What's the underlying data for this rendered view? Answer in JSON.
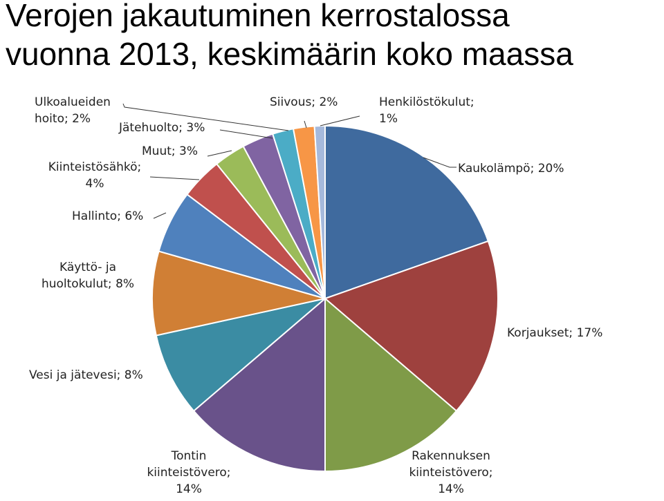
{
  "title_lines": [
    "Verojen jakautuminen kerrostalossa",
    "vuonna 2013, keskimäärin koko maassa"
  ],
  "chart_data": {
    "type": "pie",
    "title": "Verojen jakautuminen kerrostalossa vuonna 2013, keskimäärin koko maassa",
    "slices": [
      {
        "name": "Kaukolämpö",
        "value": 20,
        "label_lines": [
          "Kaukolämpö; 20%"
        ],
        "color": "#3f6a9e"
      },
      {
        "name": "Korjaukset",
        "value": 17,
        "label_lines": [
          "Korjaukset; 17%"
        ],
        "color": "#9e413e"
      },
      {
        "name": "Rakennuksen kiinteistövero",
        "value": 14,
        "label_lines": [
          "Rakennuksen",
          "kiinteistövero;",
          "14%"
        ],
        "color": "#7f9b48"
      },
      {
        "name": "Tontin kiinteistövero",
        "value": 14,
        "label_lines": [
          "Tontin",
          "kiinteistövero;",
          "14%"
        ],
        "color": "#69528a"
      },
      {
        "name": "Vesi ja jätevesi",
        "value": 8,
        "label_lines": [
          "Vesi ja jätevesi; 8%"
        ],
        "color": "#3b8ca3"
      },
      {
        "name": "Käyttö- ja huoltokulut",
        "value": 8,
        "label_lines": [
          "Käyttö- ja",
          "huoltokulut; 8%"
        ],
        "color": "#d07f35"
      },
      {
        "name": "Hallinto",
        "value": 6,
        "label_lines": [
          "Hallinto; 6%"
        ],
        "color": "#4f81bd"
      },
      {
        "name": "Kiinteistösähkö",
        "value": 4,
        "label_lines": [
          "Kiinteistösähkö;",
          "4%"
        ],
        "color": "#c0504d"
      },
      {
        "name": "Muut",
        "value": 3,
        "label_lines": [
          "Muut; 3%"
        ],
        "color": "#9bbb59"
      },
      {
        "name": "Jätehuolto",
        "value": 3,
        "label_lines": [
          "Jätehuolto; 3%"
        ],
        "color": "#8064a2"
      },
      {
        "name": "Ulkoalueiden hoito",
        "value": 2,
        "label_lines": [
          "Ulkoalueiden",
          "hoito; 2%"
        ],
        "color": "#4bacc6"
      },
      {
        "name": "Siivous",
        "value": 2,
        "label_lines": [
          "Siivous; 2%"
        ],
        "color": "#f79646"
      },
      {
        "name": "Henkilöstökulut",
        "value": 1,
        "label_lines": [
          "Henkilöstökulut;",
          "1%"
        ],
        "color": "#a5b9dc"
      }
    ]
  }
}
